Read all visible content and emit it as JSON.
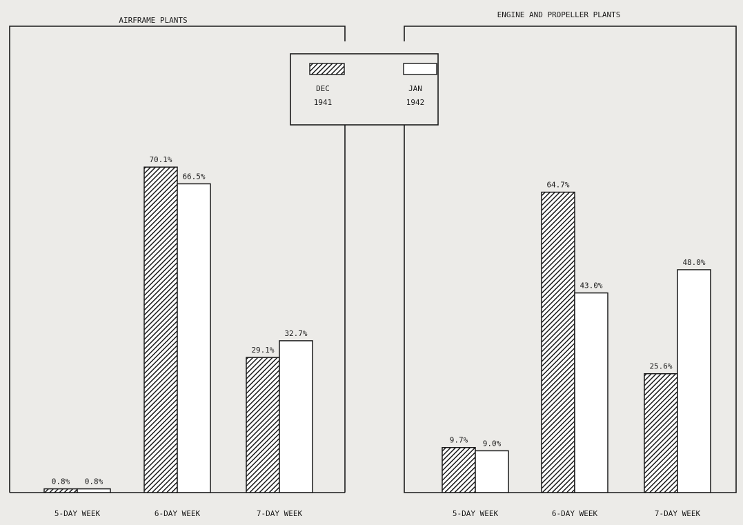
{
  "colors": {
    "background": "#ecebe8",
    "ink": "#1a1a1a",
    "hatched_fill": "diagonal-hatch",
    "open_fill": "#ffffff"
  },
  "legend": {
    "placement": "top-center",
    "entries": [
      {
        "line1": "DEC",
        "line2": "1941",
        "style": "hatched"
      },
      {
        "line1": "JAN",
        "line2": "1942",
        "style": "open"
      }
    ]
  },
  "chart_data": [
    {
      "type": "bar",
      "title": "AIRFRAME PLANTS",
      "categories": [
        "5-DAY WEEK",
        "6-DAY WEEK",
        "7-DAY WEEK"
      ],
      "series": [
        {
          "name": "DEC 1941",
          "values": [
            0.8,
            70.1,
            29.1
          ],
          "labels": [
            "0.8%",
            "70.1%",
            "29.1%"
          ]
        },
        {
          "name": "JAN 1942",
          "values": [
            0.8,
            66.5,
            32.7
          ],
          "labels": [
            "0.8%",
            "66.5%",
            "32.7%"
          ]
        }
      ],
      "ylim": [
        0,
        100
      ],
      "grid": false,
      "xlabel": "",
      "ylabel": ""
    },
    {
      "type": "bar",
      "title": "ENGINE AND PROPELLER PLANTS",
      "categories": [
        "5-DAY WEEK",
        "6-DAY WEEK",
        "7-DAY WEEK"
      ],
      "series": [
        {
          "name": "DEC 1941",
          "values": [
            9.7,
            64.7,
            25.6
          ],
          "labels": [
            "9.7%",
            "64.7%",
            "25.6%"
          ]
        },
        {
          "name": "JAN 1942",
          "values": [
            9.0,
            43.0,
            48.0
          ],
          "labels": [
            "9.0%",
            "43.0%",
            "48.0%"
          ]
        }
      ],
      "ylim": [
        0,
        100
      ],
      "grid": false,
      "xlabel": "",
      "ylabel": ""
    }
  ]
}
